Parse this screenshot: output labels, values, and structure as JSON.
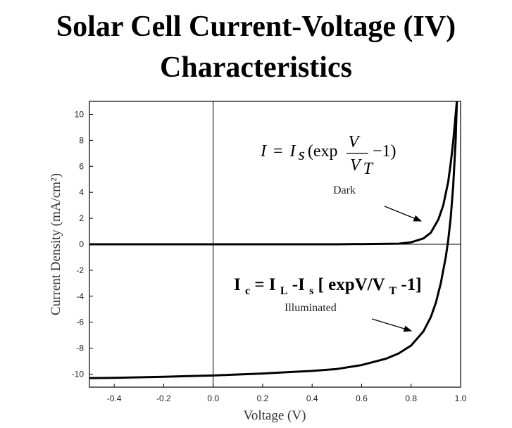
{
  "title": {
    "line1": "Solar Cell  Current-Voltage (IV)",
    "line2": "Characteristics"
  },
  "chart_data": {
    "type": "line",
    "xlabel": "Voltage (V)",
    "ylabel": "Current Density (mA/cm²)",
    "xlim": [
      -0.5,
      1.0
    ],
    "ylim": [
      -11,
      11
    ],
    "x_ticks": [
      -0.4,
      -0.2,
      0.0,
      0.2,
      0.4,
      0.6,
      0.8,
      1.0
    ],
    "x_tick_labels": [
      "-0.4",
      "-0.2",
      "0.0",
      "0.2",
      "0.4",
      "0.6",
      "0.8",
      "1.0"
    ],
    "y_ticks": [
      10,
      8,
      6,
      4,
      2,
      0,
      -2,
      -4,
      -6,
      -8,
      -10
    ],
    "y_tick_labels": [
      "10",
      "8",
      "6",
      "4",
      "2",
      "0",
      "-2",
      "-4",
      "-6",
      "-8",
      "-10"
    ],
    "grid": false,
    "series": [
      {
        "name": "Dark",
        "x": [
          -0.5,
          0.0,
          0.5,
          0.75,
          0.8,
          0.85,
          0.88,
          0.91,
          0.93,
          0.95,
          0.96,
          0.97,
          0.98,
          0.985
        ],
        "y": [
          0,
          0,
          0,
          0.05,
          0.15,
          0.45,
          0.9,
          1.9,
          3.0,
          4.8,
          6.2,
          7.9,
          10.0,
          11.0
        ]
      },
      {
        "name": "Illuminated",
        "x": [
          -0.5,
          -0.4,
          -0.2,
          0.0,
          0.2,
          0.4,
          0.5,
          0.6,
          0.7,
          0.75,
          0.8,
          0.85,
          0.88,
          0.9,
          0.92,
          0.93,
          0.94,
          0.95,
          0.96,
          0.97,
          0.98,
          0.985
        ],
        "y": [
          -10.3,
          -10.28,
          -10.2,
          -10.1,
          -9.95,
          -9.75,
          -9.6,
          -9.3,
          -8.8,
          -8.4,
          -7.8,
          -6.7,
          -5.6,
          -4.5,
          -3.0,
          -2.0,
          -1.0,
          0.3,
          2.0,
          4.5,
          8.0,
          11.0
        ]
      }
    ],
    "annotations": {
      "dark_equation": {
        "lhs": "I",
        "eq": "=",
        "is_main": "I",
        "is_sub": "s",
        "paren_open": "(exp",
        "frac_num": "V",
        "frac_den": "V",
        "frac_den_sub": "T",
        "paren_close": "−1)"
      },
      "dark_label": "Dark",
      "illuminated_equation": {
        "ic": "I",
        "ic_sub": "c",
        "mid1": " = I",
        "il_sub": "L",
        "mid2": "-I",
        "is_sub": "s",
        "mid3": "[ expV/V",
        "vt_sub": "T",
        "end": "  -1]"
      },
      "illuminated_label": "Illuminated"
    }
  }
}
